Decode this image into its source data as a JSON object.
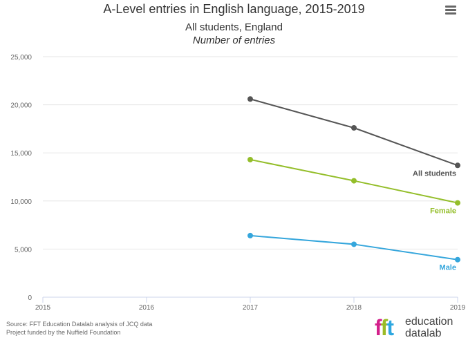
{
  "chart_data": {
    "type": "line",
    "title": "A-Level entries in English language, 2015-2019",
    "subtitle": [
      "All students, England",
      "Number of entries"
    ],
    "x": [
      2015,
      2016,
      2017,
      2018,
      2019
    ],
    "xlim": [
      2015,
      2019
    ],
    "ylim": [
      0,
      25000
    ],
    "y_ticks": [
      0,
      5000,
      10000,
      15000,
      20000,
      25000
    ],
    "y_tick_labels": [
      "0",
      "5,000",
      "10,000",
      "15,000",
      "20,000",
      "25,000"
    ],
    "x_tick_labels": [
      "2015",
      "2016",
      "2017",
      "2018",
      "2019"
    ],
    "grid": true,
    "legend": "end-of-line labels",
    "series": [
      {
        "name": "All students",
        "color": "#555555",
        "x": [
          2017,
          2018,
          2019
        ],
        "values": [
          20600,
          17600,
          13700
        ]
      },
      {
        "name": "Female",
        "color": "#94be2a",
        "x": [
          2017,
          2018,
          2019
        ],
        "values": [
          14300,
          12100,
          9800
        ]
      },
      {
        "name": "Male",
        "color": "#35a6dc",
        "x": [
          2017,
          2018,
          2019
        ],
        "values": [
          6400,
          5500,
          3900
        ]
      }
    ]
  },
  "menu_icon": "hamburger-icon",
  "footer": {
    "source": "Source: FFT Education Datalab analysis of JCQ data",
    "funding": "Project funded by the Nuffield Foundation"
  },
  "logo": {
    "letters": [
      "f",
      "f",
      "t"
    ],
    "word1": "education",
    "word2": "datalab"
  }
}
